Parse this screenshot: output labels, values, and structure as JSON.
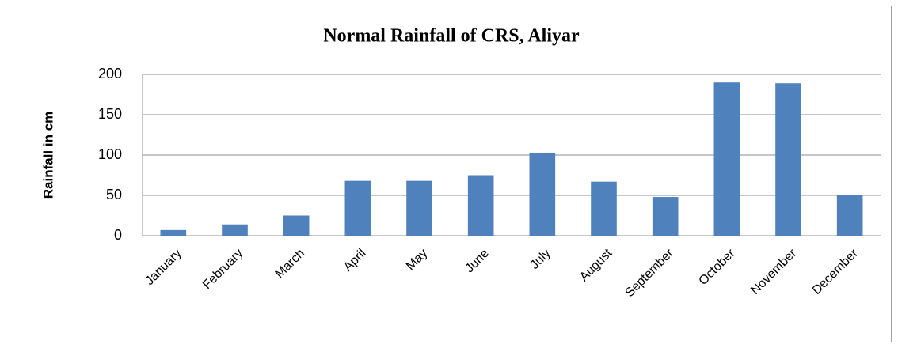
{
  "chart_data": {
    "type": "bar",
    "title": "Normal Rainfall of CRS, Aliyar",
    "y_label": "Rainfall in cm",
    "categories": [
      "January",
      "February",
      "March",
      "April",
      "May",
      "June",
      "July",
      "August",
      "September",
      "October",
      "November",
      "December"
    ],
    "values": [
      7,
      14,
      25,
      68,
      68,
      75,
      103,
      67,
      48,
      190,
      189,
      50
    ],
    "color": "#4f81bd",
    "ylim": [
      0,
      200
    ],
    "yticks": [
      0,
      50,
      100,
      150,
      200
    ],
    "grid": true
  }
}
